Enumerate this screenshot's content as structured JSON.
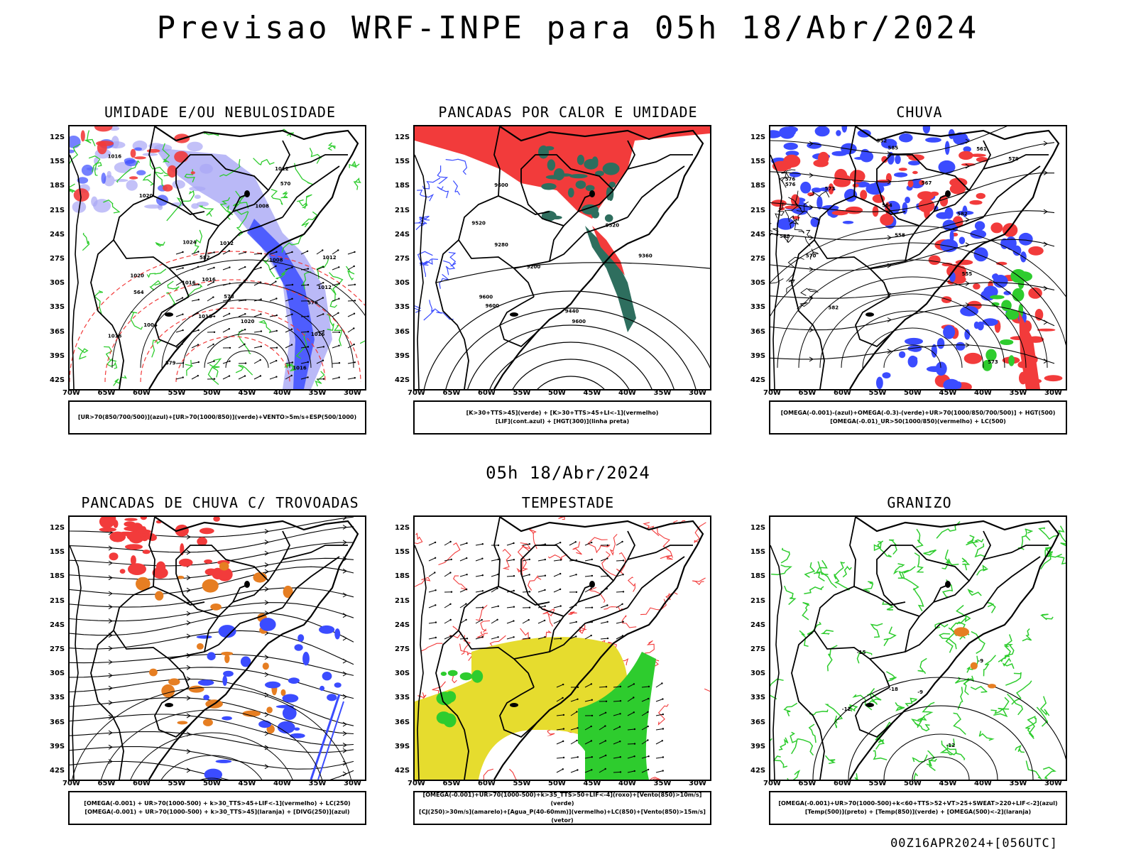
{
  "title": "Previsao WRF-INPE  para 05h 18/Abr/2024",
  "subtitle": "05h 18/Abr/2024",
  "footer": "00Z16APR2024+[056UTC]",
  "lat_labels": [
    "12S",
    "15S",
    "18S",
    "21S",
    "24S",
    "27S",
    "30S",
    "33S",
    "36S",
    "39S",
    "42S"
  ],
  "lon_labels": [
    "70W",
    "65W",
    "60W",
    "55W",
    "50W",
    "45W",
    "40W",
    "35W",
    "30W"
  ],
  "colors": {
    "blue": "#3b4cff",
    "lightblue": "#a9a7f5",
    "green": "#2ecc2e",
    "red": "#f23b3b",
    "darkgreen": "#2e6e5e",
    "yellow": "#e6dc2e",
    "orange": "#e67e22"
  },
  "panels": [
    {
      "title": "UMIDADE E/OU NEBULOSIDADE",
      "legend": [
        "[UR>70(850/700/500)](azul)+[UR>70(1000/850)](verde)+VENTO>5m/s+ESP(500/1000)"
      ]
    },
    {
      "title": "PANCADAS POR CALOR E UMIDADE",
      "legend": [
        "[K>30+TTS>45](verde) + [K>30+TTS>45+LI<-1](vermelho)",
        "[LIF](cont.azul) + [HGT(300)](linha preta)"
      ]
    },
    {
      "title": "CHUVA",
      "legend": [
        "[OMEGA(-0.001)-(azul)+OMEGA(-0.3)-(verde)+UR>70(1000/850/700/500)] + HGT(500)",
        "[OMEGA(-0.01)_UR>50(1000/850)(vermelho) + LC(500)"
      ]
    },
    {
      "title": "PANCADAS DE CHUVA C/ TROVOADAS",
      "legend": [
        "[OMEGA(-0.001) + UR>70(1000-500) + k>30_TTS>45+LIF<-1](vermelho) + LC(250)",
        "[OMEGA(-0.001) + UR>70(1000-500) + k>30_TTS>45](laranja) + [DIVG(250)](azul)"
      ]
    },
    {
      "title": "TEMPESTADE",
      "legend": [
        "[OMEGA(-0.001)+UR>70(1000-500)+k>35_TTS>50+LIF<-4](roxo)+[Vento(850)>10m/s](verde)",
        "[CJ(250)>30m/s](amarelo)+[Agua_P(40-60mm)](vermelho)+LC(850)+[Vento(850)>15m/s](vetor)"
      ]
    },
    {
      "title": "GRANIZO",
      "legend": [
        "[OMEGA(-0.001)+UR>70(1000-500)+k<60+TTS>52+VT>25+SWEAT>220+LIF<-2](azul)",
        "[Temp(500)](preto) + [Temp(850)](verde) + [OMEGA(500)<-2](laranja)"
      ]
    }
  ],
  "contour_labels": {
    "p1": [
      "1012",
      "1012",
      "1016",
      "1020",
      "1024",
      "1016",
      "1020",
      "1020",
      "1016",
      "1012",
      "1008",
      "1016",
      "1016",
      "1016",
      "1004",
      "1008",
      "1012",
      "1016",
      "576",
      "579",
      "582",
      "564",
      "570",
      "573"
    ],
    "p2": [
      "9600",
      "9600",
      "9600",
      "9520",
      "9520",
      "9440",
      "9360",
      "9280",
      "9200",
      "9600"
    ],
    "p3": [
      "588",
      "585",
      "582",
      "579",
      "576",
      "573",
      "570",
      "567",
      "564",
      "561",
      "558",
      "555",
      "552",
      "576",
      "573",
      "582"
    ],
    "p6": [
      "-9",
      "-12",
      "-15",
      "-18",
      "-12",
      "-9"
    ]
  }
}
